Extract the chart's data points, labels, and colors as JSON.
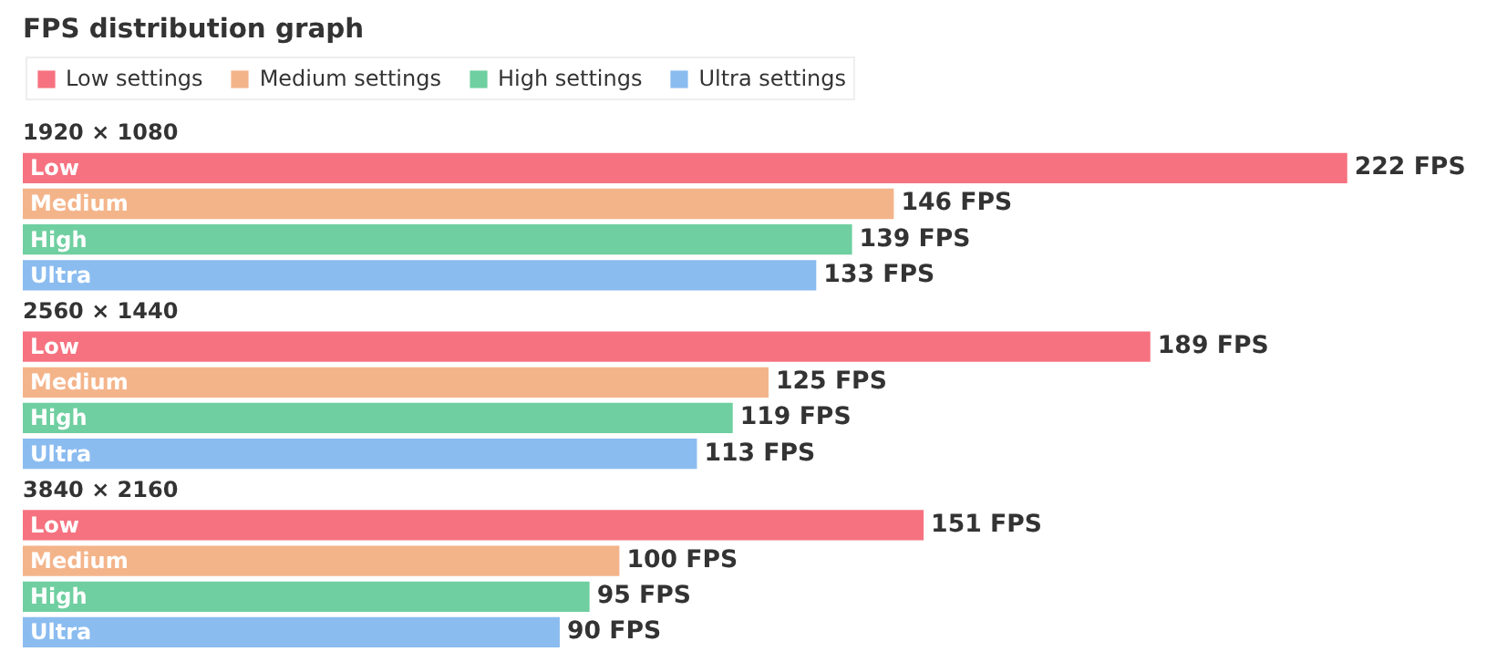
{
  "chart_data": {
    "type": "bar",
    "orientation": "horizontal",
    "title": "FPS distribution graph",
    "legend": "top left",
    "categories": [
      "1920 × 1080",
      "2560 × 1440",
      "3840 × 2160"
    ],
    "series": [
      {
        "name": "Low settings",
        "color": "#f67280",
        "values": [
          222,
          189,
          151
        ],
        "value_labels": [
          "222 FPS",
          "189 FPS",
          "151 FPS"
        ]
      },
      {
        "name": "Medium settings",
        "color": "#f4b48a",
        "values": [
          146,
          125,
          100
        ],
        "value_labels": [
          "146 FPS",
          "125 FPS",
          "100 FPS"
        ]
      },
      {
        "name": "High settings",
        "color": "#6fcfa0",
        "values": [
          139,
          119,
          95
        ],
        "value_labels": [
          "139 FPS",
          "119 FPS",
          "95 FPS"
        ]
      },
      {
        "name": "Ultra settings",
        "color": "#8bbcf0",
        "values": [
          133,
          113,
          90
        ],
        "value_labels": [
          "133 FPS",
          "113 FPS",
          "90 FPS"
        ]
      }
    ],
    "annotations": [
      "Low",
      "Medium",
      "High",
      "Ultra",
      "Low",
      "Medium",
      "High",
      "Ultra",
      "Low",
      "Medium",
      "High",
      "Ultra"
    ]
  }
}
